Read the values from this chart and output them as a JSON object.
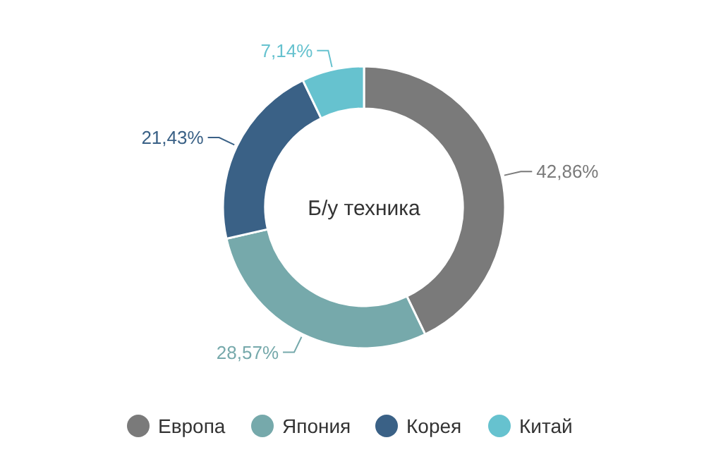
{
  "chart_data": {
    "type": "donut",
    "title": "Б/у техника",
    "categories": [
      "Европа",
      "Япония",
      "Корея",
      "Китай"
    ],
    "values": [
      42.86,
      28.57,
      21.43,
      7.14
    ],
    "colors": [
      "#7a7a7a",
      "#76a9ab",
      "#3a6186",
      "#66c2cf"
    ],
    "value_labels": [
      "42,86%",
      "28,57%",
      "21,43%",
      "7,14%"
    ],
    "legend": "bottom"
  }
}
